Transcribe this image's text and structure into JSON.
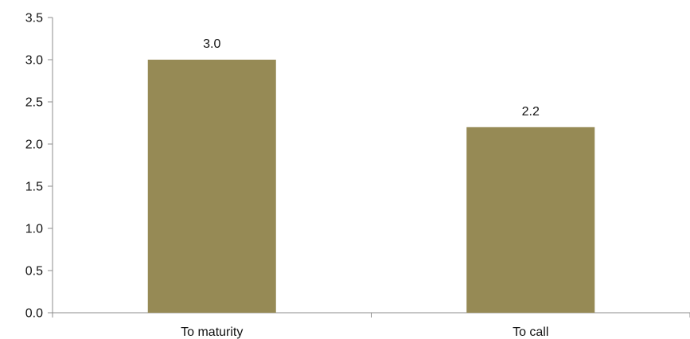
{
  "chart_data": {
    "type": "bar",
    "title": "",
    "xlabel": "",
    "ylabel": "",
    "categories": [
      "To maturity",
      "To call"
    ],
    "values": [
      3.0,
      2.2
    ],
    "data_labels": [
      "3.0",
      "2.2"
    ],
    "ylim": [
      0,
      3.5
    ],
    "yticks": [
      0.0,
      0.5,
      1.0,
      1.5,
      2.0,
      2.5,
      3.0,
      3.5
    ],
    "ytick_labels": [
      "0.0",
      "0.5",
      "1.0",
      "1.5",
      "2.0",
      "2.5",
      "3.0",
      "3.5"
    ],
    "grid": false,
    "legend": "none",
    "colors": {
      "bar": "#968a55",
      "axis": "#8c8c8c",
      "text": "#111111"
    }
  }
}
